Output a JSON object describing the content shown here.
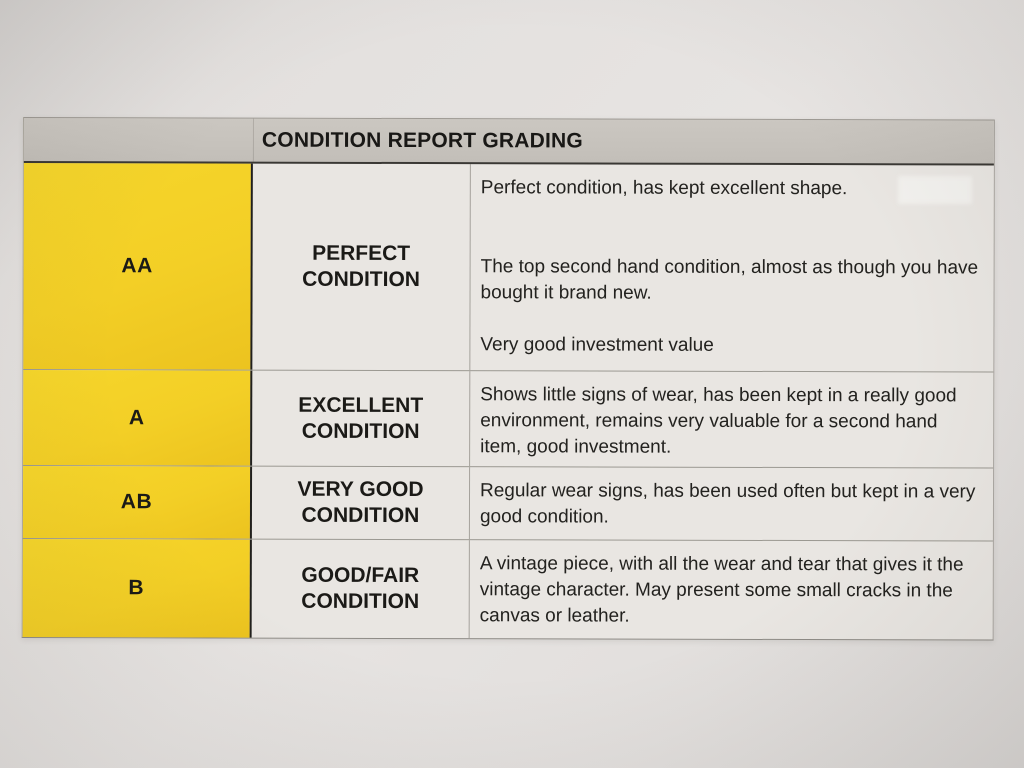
{
  "table": {
    "title": "CONDITION REPORT GRADING",
    "colors": {
      "header_bg": "#c6c2bc",
      "grade_column_bg": "#f3cf26",
      "cell_bg": "#e9e6e2",
      "text": "#1b1a17"
    },
    "rows": [
      {
        "grade": "AA",
        "condition": "PERFECT CONDITION",
        "description": [
          "Perfect condition, has kept excellent shape.",
          "The top second hand condition, almost as though you have bought it brand new.",
          "Very good investment value"
        ]
      },
      {
        "grade": "A",
        "condition": "EXCELLENT CONDITION",
        "description": [
          "Shows little signs of wear, has been kept in a really good environment, remains very valuable for a second hand item, good investment."
        ]
      },
      {
        "grade": "AB",
        "condition": "VERY GOOD CONDITION",
        "description": [
          "Regular wear signs, has been used often but kept in a very good condition."
        ]
      },
      {
        "grade": "B",
        "condition": "GOOD/FAIR CONDITION",
        "description": [
          "A vintage piece, with all the wear and tear that gives it the vintage character. May present some small cracks in the canvas or leather."
        ]
      }
    ]
  }
}
